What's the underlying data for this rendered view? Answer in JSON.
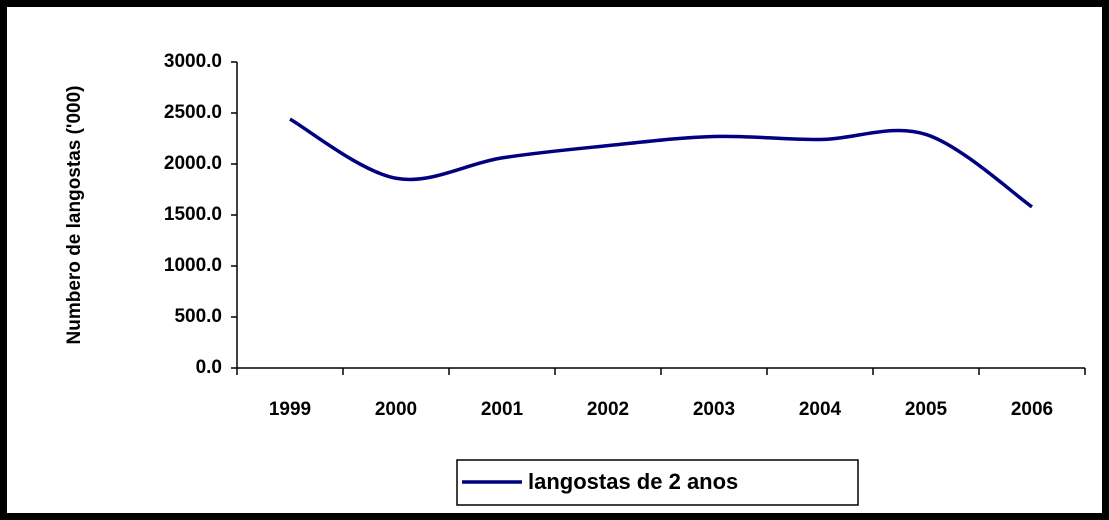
{
  "chart_data": {
    "type": "line",
    "y_label": "Numbero de langostas ('000)",
    "categories": [
      "1999",
      "2000",
      "2001",
      "2002",
      "2003",
      "2004",
      "2005",
      "2006"
    ],
    "series": [
      {
        "name": "langostas de 2 anos",
        "color": "#000080",
        "values": [
          2440,
          1860,
          2060,
          2180,
          2270,
          2240,
          2290,
          1580
        ]
      }
    ],
    "ylim": [
      0,
      3000
    ],
    "yticks": [
      {
        "value": 0,
        "label": "0.0"
      },
      {
        "value": 500,
        "label": "500.0"
      },
      {
        "value": 1000,
        "label": "1000.0"
      },
      {
        "value": 1500,
        "label": "1500.0"
      },
      {
        "value": 2000,
        "label": "2000.0"
      },
      {
        "value": 2500,
        "label": "2500.0"
      },
      {
        "value": 3000,
        "label": "3000.0"
      }
    ],
    "smooth": true,
    "legend": "bottom"
  }
}
